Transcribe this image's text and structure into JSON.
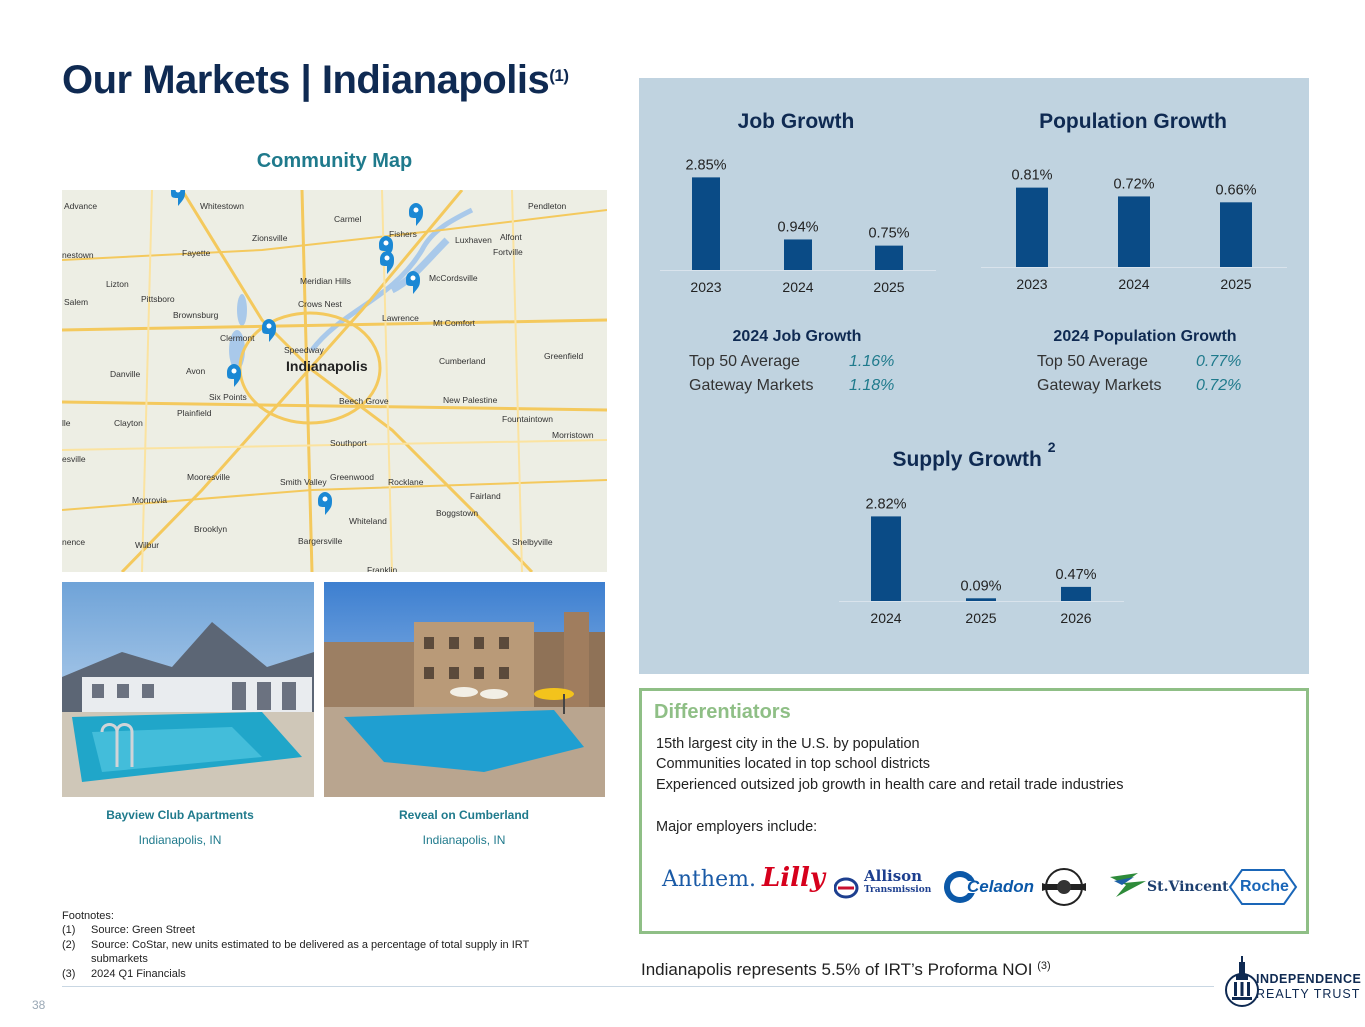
{
  "header": {
    "title": "Our Markets | Indianapolis",
    "title_footnote": "(1)"
  },
  "community_map": {
    "title": "Community Map",
    "places": [
      "Advance",
      "Whitestown",
      "Carmel",
      "Fishers",
      "Pendleton",
      "Zionsville",
      "Luxhaven",
      "Alfont",
      "Fortville",
      "Fayette",
      "nestown",
      "Meridian Hills",
      "McCordsville",
      "Lizton",
      "Pittsboro",
      "Crows Nest",
      "Salem",
      "Brownsburg",
      "Lawrence",
      "Mt Comfort",
      "Clermont",
      "Speedway",
      "Indianapolis",
      "Cumberland",
      "Greenfield",
      "Danville",
      "Avon",
      "Six Points",
      "Beech Grove",
      "New Palestine",
      "Plainfield",
      "Fountaintown",
      "Clayton",
      "Morristown",
      "Southport",
      "esville",
      "Mooresville",
      "Smith Valley",
      "Greenwood",
      "Rocklane",
      "Monrovia",
      "Fairland",
      "Whiteland",
      "Boggstown",
      "Brooklyn",
      "Bargersville",
      "Shelbyville",
      "nence",
      "Wilbur",
      "Franklin",
      "lle"
    ],
    "marker_icon": "map-pin-icon"
  },
  "properties": [
    {
      "name": "Bayview Club Apartments",
      "location": "Indianapolis, IN"
    },
    {
      "name": "Reveal on Cumberland",
      "location": "Indianapolis, IN"
    }
  ],
  "colors": {
    "navy": "#0f2a52",
    "bar": "#0a4b86",
    "teal": "#1f7a8c",
    "panel": "#c0d3e0",
    "green": "#8fbf86"
  },
  "chart_data": [
    {
      "type": "bar",
      "title": "Job Growth",
      "categories": [
        "2023",
        "2024",
        "2025"
      ],
      "values": [
        2.85,
        0.94,
        0.75
      ],
      "labels": [
        "2.85%",
        "0.94%",
        "0.75%"
      ],
      "grid": false
    },
    {
      "type": "bar",
      "title": "Population Growth",
      "categories": [
        "2023",
        "2024",
        "2025"
      ],
      "values": [
        0.81,
        0.72,
        0.66
      ],
      "labels": [
        "0.81%",
        "0.72%",
        "0.66%"
      ],
      "grid": false
    },
    {
      "type": "bar",
      "title": "Supply Growth",
      "title_note": "2",
      "categories": [
        "2024",
        "2025",
        "2026"
      ],
      "values": [
        2.82,
        0.09,
        0.47
      ],
      "labels": [
        "2.82%",
        "0.09%",
        "0.47%"
      ],
      "grid": false
    }
  ],
  "job_stats": {
    "heading": "2024 Job Growth",
    "rows": [
      {
        "label": "Top 50 Average",
        "value": "1.16%"
      },
      {
        "label": "Gateway Markets",
        "value": "1.18%"
      }
    ]
  },
  "pop_stats": {
    "heading": "2024 Population Growth",
    "rows": [
      {
        "label": "Top 50 Average",
        "value": "0.77%"
      },
      {
        "label": "Gateway Markets",
        "value": "0.72%"
      }
    ]
  },
  "differentiators": {
    "title": "Differentiators",
    "lines": [
      "15th largest city in the U.S. by population",
      "Communities located in top school districts",
      "Experienced outsized job growth in health care and retail trade industries"
    ],
    "employers_intro": "Major employers include:",
    "employers": [
      "Anthem.",
      "Lilly",
      "Allison",
      "Transmission",
      "Celadon",
      "St.Vincent",
      "Roche"
    ]
  },
  "noi": {
    "text": "Indianapolis represents 5.5% of IRT’s Proforma NOI",
    "note": "(3)"
  },
  "footnotes": {
    "heading": "Footnotes:",
    "items": [
      {
        "num": "(1)",
        "text": "Source: Green Street"
      },
      {
        "num": "(2)",
        "text": "Source: CoStar, new units estimated to be delivered as a percentage of total supply in IRT"
      },
      {
        "num": "",
        "text": "submarkets"
      },
      {
        "num": "(3)",
        "text": "2024 Q1 Financials"
      }
    ]
  },
  "page_number": "38",
  "brand": {
    "line1": "INDEPENDENCE",
    "line2": "REALTY TRUST"
  }
}
